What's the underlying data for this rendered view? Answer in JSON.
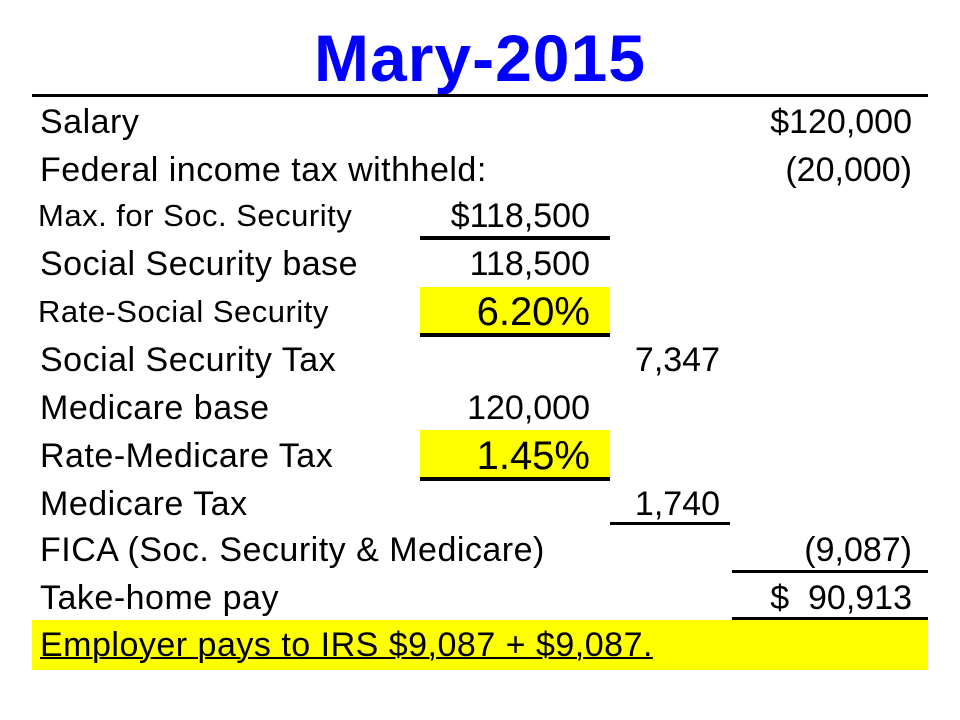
{
  "title": "Mary-2015",
  "rows": {
    "salary": {
      "label": "Salary",
      "col3": "$120,000"
    },
    "federal_tax": {
      "label": "Federal income tax withheld:",
      "col3": "(20,000)"
    },
    "max_ss": {
      "label": "Max. for Soc. Security",
      "col1": "$118,500"
    },
    "ss_base": {
      "label": "Social Security base",
      "col1": "118,500"
    },
    "ss_rate": {
      "label": "Rate-Social Security",
      "col1": "6.20%"
    },
    "ss_tax": {
      "label": "Social Security Tax",
      "col2": "7,347"
    },
    "medicare_base": {
      "label": "Medicare base",
      "col1": "120,000"
    },
    "medicare_rate": {
      "label": "Rate-Medicare Tax",
      "col1": "1.45%"
    },
    "medicare_tax": {
      "label": "Medicare Tax",
      "col2": "1,740"
    },
    "fica": {
      "label": "FICA (Soc. Security & Medicare)",
      "col3": "(9,087)"
    },
    "take_home": {
      "label": "Take-home pay",
      "col3": "$  90,913"
    }
  },
  "employer_note": "Employer pays to IRS $9,087 + $9,087.",
  "colors": {
    "title": "#0000ff",
    "highlight": "#ffff00",
    "text": "#000000"
  }
}
